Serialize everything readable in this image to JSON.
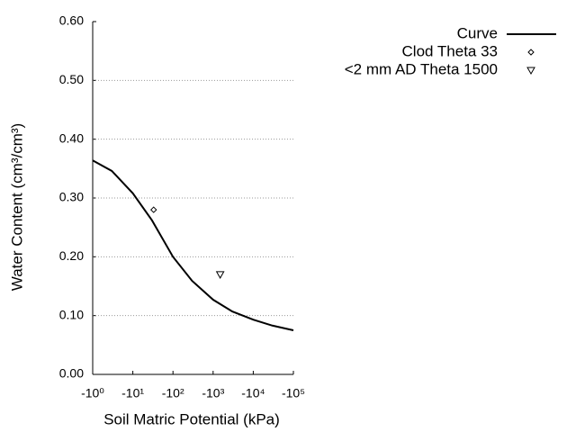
{
  "chart_data": {
    "type": "line",
    "x_label": "Soil Matric Potential (kPa)",
    "y_label": "Water Content (cm³/cm³)",
    "xscale": "log",
    "grid": true,
    "legend": "upper right",
    "xlim": [
      -1,
      -100000
    ],
    "xticks": [
      {
        "value": -1,
        "label": "-10⁰"
      },
      {
        "value": -10,
        "label": "-10¹"
      },
      {
        "value": -100,
        "label": "-10²"
      },
      {
        "value": -1000,
        "label": "-10³"
      },
      {
        "value": -10000,
        "label": "-10⁴"
      },
      {
        "value": -100000,
        "label": "-10⁵"
      }
    ],
    "ylim": [
      0,
      0.6
    ],
    "yticks": [
      {
        "value": 0,
        "label": "0.00"
      },
      {
        "value": 0.1,
        "label": "0.10"
      },
      {
        "value": 0.2,
        "label": "0.20"
      },
      {
        "value": 0.3,
        "label": "0.30"
      },
      {
        "value": 0.4,
        "label": "0.40"
      },
      {
        "value": 0.5,
        "label": "0.50"
      },
      {
        "value": 0.6,
        "label": "0.60"
      }
    ],
    "series": [
      {
        "name": "Curve",
        "color": "#000000",
        "style": "line",
        "x": [
          -1,
          -3,
          -10,
          -30,
          -100,
          -300,
          -1000,
          -3000,
          -10000,
          -30000,
          -100000
        ],
        "values": [
          0.364,
          0.346,
          0.308,
          0.262,
          0.2,
          0.159,
          0.127,
          0.107,
          0.093,
          0.083,
          0.075
        ]
      },
      {
        "name": "Clod Theta 33",
        "color": "#000000",
        "style": "diamond",
        "x": [
          -33
        ],
        "values": [
          0.28
        ]
      },
      {
        "name": "<2 mm AD Theta 1500",
        "color": "#000000",
        "style": "triangle-down",
        "x": [
          -1500
        ],
        "values": [
          0.17
        ]
      }
    ]
  }
}
